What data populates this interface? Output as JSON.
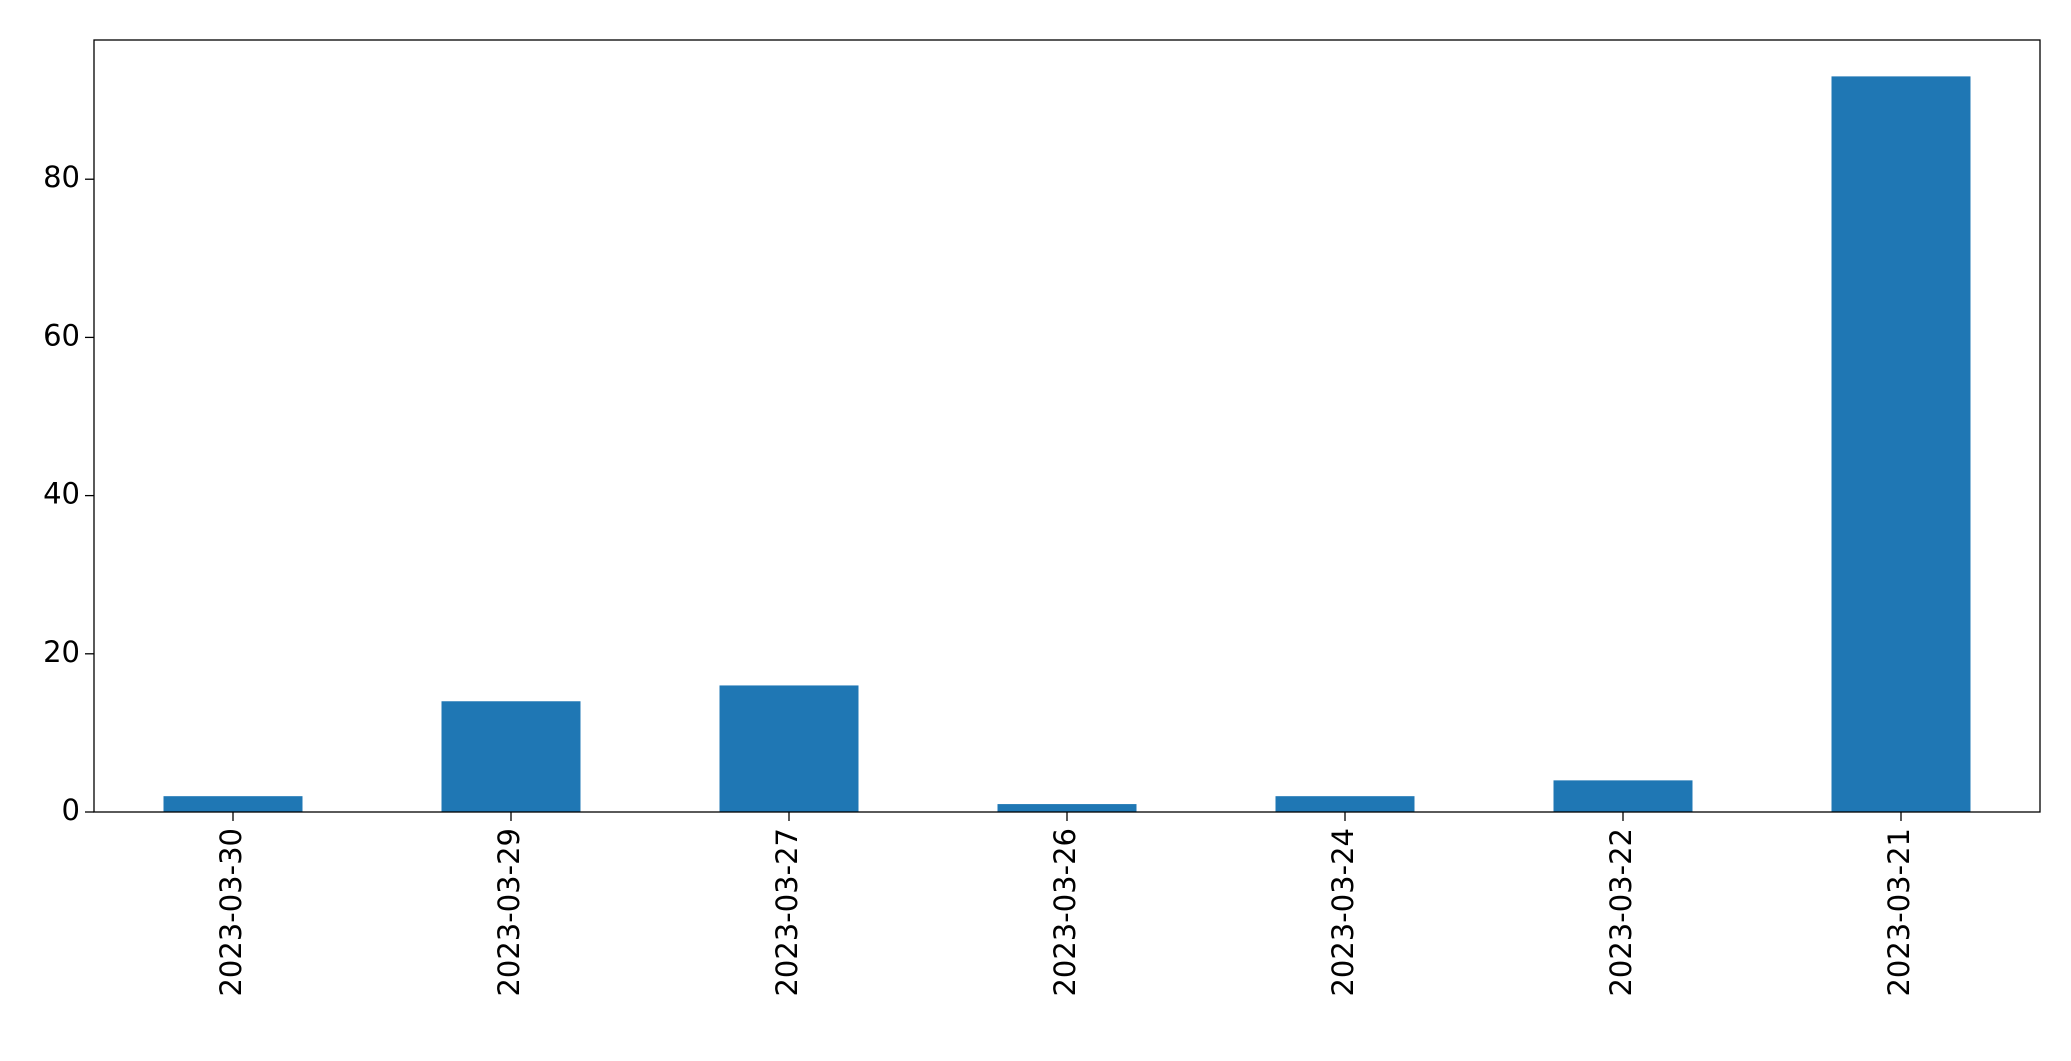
{
  "chart_data": {
    "type": "bar",
    "categories": [
      "2023-03-30",
      "2023-03-29",
      "2023-03-27",
      "2023-03-26",
      "2023-03-24",
      "2023-03-22",
      "2023-03-21"
    ],
    "values": [
      2,
      14,
      16,
      1,
      2,
      4,
      93
    ],
    "color": "#1f77b4",
    "ylim": [
      0,
      97.6
    ],
    "yticks": [
      0,
      20,
      40,
      60,
      80
    ],
    "grid": false
  }
}
